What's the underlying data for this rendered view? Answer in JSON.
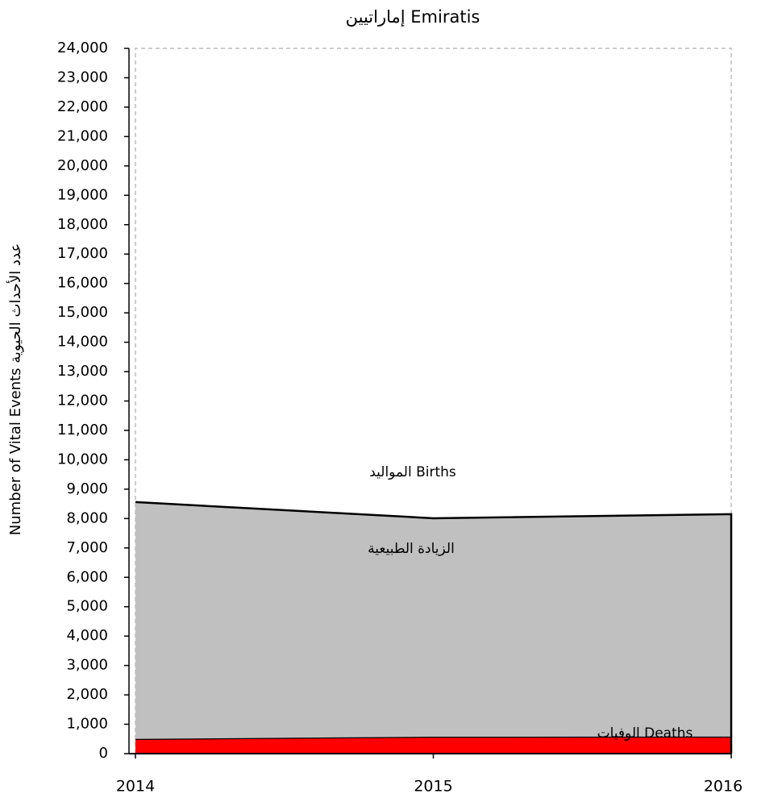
{
  "chart_data": {
    "type": "stacked_area",
    "title": "إماراتيين  Emiratis",
    "y_label": "Number of Vital Events  عدد الأحداث الحيوية",
    "categories": [
      "2014",
      "2015",
      "2016"
    ],
    "series": [
      {
        "name": "الوفيات Deaths",
        "color": "#ff0000",
        "values": [
          500,
          576,
          580
        ]
      },
      {
        "name": "الزيادة الطبيعية",
        "color": "#c0c0c0",
        "values": [
          8060,
          7434,
          7570
        ]
      }
    ],
    "annotations": [
      "المواليد Births"
    ],
    "ylim": [
      0,
      24000
    ],
    "yticks": [
      0,
      {
        "value": 1000,
        "label": "1,000"
      },
      {
        "value": 2000,
        "label": "2,000"
      },
      {
        "value": 3000,
        "label": "3,000"
      },
      {
        "value": 4000,
        "label": "4,000"
      },
      {
        "value": 5000,
        "label": "5,000"
      },
      {
        "value": 6000,
        "label": "6,000"
      },
      {
        "value": 7000,
        "label": "7,000"
      },
      {
        "value": 8000,
        "label": "8,000"
      },
      {
        "value": 9000,
        "label": "9,000"
      },
      {
        "value": 10000,
        "label": "10,000"
      },
      {
        "value": 11000,
        "label": "11,000"
      },
      {
        "value": 12000,
        "label": "12,000"
      },
      {
        "value": 13000,
        "label": "13,000"
      },
      {
        "value": 14000,
        "label": "14,000"
      },
      {
        "value": 15000,
        "label": "15,000"
      },
      {
        "value": 16000,
        "label": "16,000"
      },
      {
        "value": 17000,
        "label": "17,000"
      },
      {
        "value": 18000,
        "label": "18,000"
      },
      {
        "value": 19000,
        "label": "19,000"
      },
      {
        "value": 20000,
        "label": "20,000"
      },
      {
        "value": 21000,
        "label": "21,000"
      },
      {
        "value": 22000,
        "label": "22,000"
      },
      {
        "value": 23000,
        "label": "23,000"
      },
      {
        "value": 24000,
        "label": "24,000"
      }
    ]
  }
}
